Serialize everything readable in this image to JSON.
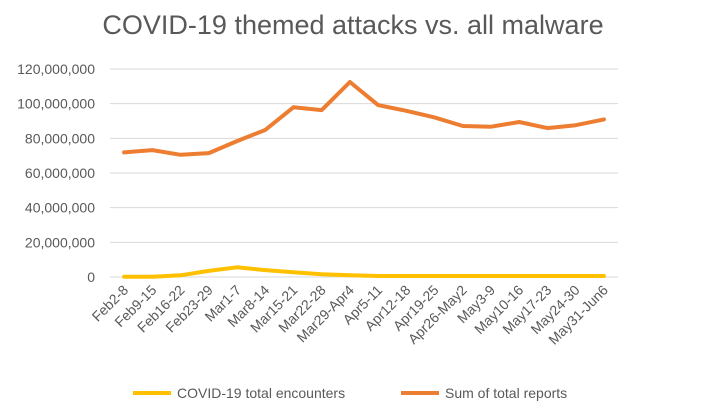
{
  "chart_data": {
    "type": "line",
    "title": "COVID-19 themed attacks vs. all malware",
    "categories": [
      "Feb2-8",
      "Feb9-15",
      "Feb16-22",
      "Feb23-29",
      "Mar1-7",
      "Mar8-14",
      "Mar15-21",
      "Mar22-28",
      "Mar29-Apr4",
      "Apr5-11",
      "Apr12-18",
      "Apr19-25",
      "Apr26-May2",
      "May3-9",
      "May10-16",
      "May17-23",
      "May24-30",
      "May31-Jun6"
    ],
    "series": [
      {
        "name": "COVID-19 total encounters",
        "color": "#FFC000",
        "values": [
          100000,
          150000,
          1000000,
          3500000,
          5600000,
          4000000,
          2700000,
          1600000,
          1000000,
          600000,
          600000,
          600000,
          600000,
          600000,
          600000,
          600000,
          600000,
          600000
        ]
      },
      {
        "name": "Sum of total reports",
        "color": "#ED7D31",
        "values": [
          71900000,
          73200000,
          70500000,
          71500000,
          78400000,
          84800000,
          97900000,
          96300000,
          112500000,
          99200000,
          95900000,
          92100000,
          87100000,
          86700000,
          89400000,
          85900000,
          87600000,
          90900000
        ]
      }
    ],
    "yticks": [
      "0",
      "20,000,000",
      "40,000,000",
      "60,000,000",
      "80,000,000",
      "100,000,000",
      "120,000,000"
    ],
    "ylim": [
      0,
      120000000
    ],
    "grid": true,
    "legend": "bottom",
    "xlabel": "",
    "ylabel": ""
  }
}
